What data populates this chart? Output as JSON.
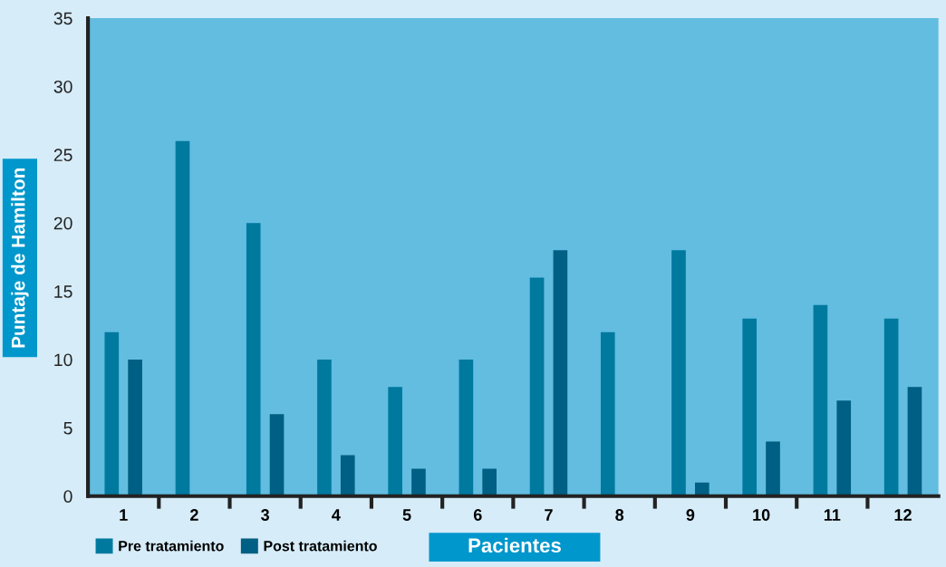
{
  "chart_data": {
    "type": "bar",
    "xlabel": "Pacientes",
    "ylabel": "Puntaje de Hamilton",
    "categories": [
      "1",
      "2",
      "3",
      "4",
      "5",
      "6",
      "7",
      "8",
      "9",
      "10",
      "11",
      "12"
    ],
    "series": [
      {
        "name": "Pre tratamiento",
        "color": "#00799f",
        "values": [
          12,
          26,
          20,
          10,
          8,
          10,
          16,
          12,
          18,
          13,
          14,
          13
        ]
      },
      {
        "name": "Post tratamiento",
        "color": "#005f84",
        "values": [
          10,
          0,
          6,
          3,
          2,
          2,
          18,
          0,
          1,
          4,
          7,
          8
        ]
      }
    ],
    "ylim": [
      0,
      35
    ],
    "yticks": [
      0,
      5,
      10,
      15,
      20,
      25,
      30,
      35
    ],
    "grid": false,
    "legend": "bottom left"
  }
}
